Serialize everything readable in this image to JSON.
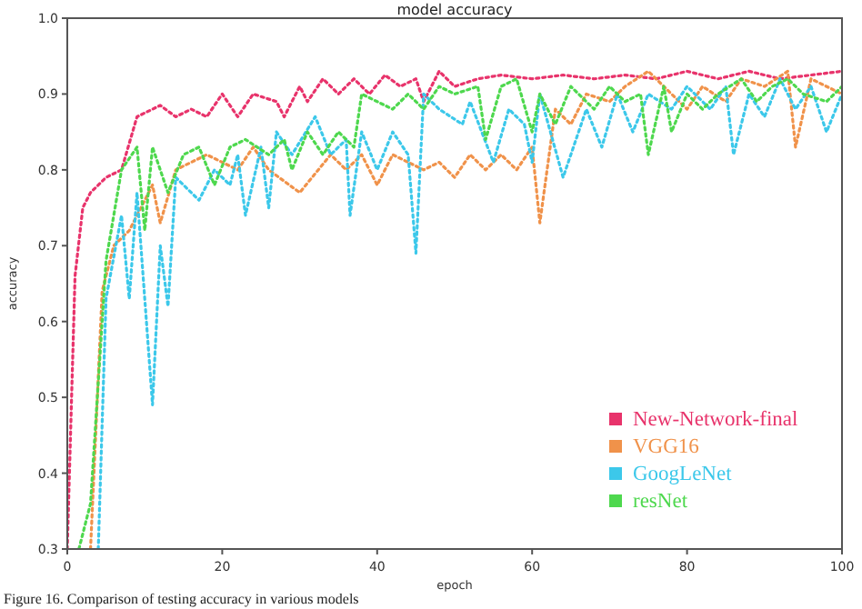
{
  "chart_data": {
    "type": "line",
    "title": "model accuracy",
    "xlabel": "epoch",
    "ylabel": "accuracy",
    "annotations": [
      "Figure 16. Comparison of testing accuracy in various models"
    ],
    "xlim": [
      0,
      100
    ],
    "xticks": [
      0,
      20,
      40,
      60,
      80,
      100
    ],
    "ylim": [
      0.3,
      1.0
    ],
    "yticks": [
      0.3,
      0.4,
      0.5,
      0.6,
      0.7,
      0.8,
      0.9,
      {
        "value": 1.0,
        "label": "1.0"
      }
    ],
    "grid": false,
    "legend": "bottom right",
    "line_style": "dotted",
    "series": [
      {
        "name": "New-Network-final",
        "color": "#e8336b",
        "x": [
          0,
          1,
          2,
          3,
          5,
          7,
          9,
          12,
          14,
          16,
          18,
          20,
          22,
          24,
          27,
          28,
          30,
          31,
          33,
          35,
          37,
          39,
          41,
          43,
          45,
          46,
          48,
          50,
          53,
          56,
          60,
          64,
          68,
          72,
          76,
          80,
          84,
          88,
          92,
          96,
          100
        ],
        "values": [
          0.3,
          0.66,
          0.75,
          0.77,
          0.79,
          0.8,
          0.87,
          0.885,
          0.87,
          0.88,
          0.87,
          0.9,
          0.87,
          0.9,
          0.89,
          0.87,
          0.91,
          0.89,
          0.92,
          0.9,
          0.92,
          0.9,
          0.925,
          0.91,
          0.92,
          0.89,
          0.93,
          0.91,
          0.92,
          0.925,
          0.92,
          0.925,
          0.92,
          0.925,
          0.92,
          0.93,
          0.92,
          0.93,
          0.92,
          0.925,
          0.93
        ]
      },
      {
        "name": "VGG16",
        "color": "#f0924a",
        "x": [
          3,
          4.5,
          6,
          8,
          11,
          12,
          14,
          18,
          22,
          24,
          26,
          30,
          34,
          36,
          38,
          40,
          42,
          46,
          48,
          50,
          52,
          54,
          56,
          58,
          60,
          61,
          63,
          65,
          67,
          70,
          72,
          75,
          78,
          80,
          82,
          85,
          87,
          90,
          93,
          94,
          96,
          100
        ],
        "values": [
          0.3,
          0.64,
          0.7,
          0.72,
          0.78,
          0.73,
          0.8,
          0.82,
          0.8,
          0.83,
          0.8,
          0.77,
          0.82,
          0.8,
          0.82,
          0.78,
          0.82,
          0.8,
          0.81,
          0.79,
          0.82,
          0.8,
          0.82,
          0.8,
          0.83,
          0.73,
          0.88,
          0.86,
          0.9,
          0.89,
          0.91,
          0.93,
          0.9,
          0.88,
          0.91,
          0.89,
          0.92,
          0.91,
          0.93,
          0.83,
          0.92,
          0.9
        ]
      },
      {
        "name": "GoogLeNet",
        "color": "#3cc8ea",
        "x": [
          4,
          5,
          7,
          8,
          9,
          11,
          12,
          13,
          14,
          17,
          19,
          21,
          22,
          23,
          25,
          26,
          27,
          29,
          32,
          34,
          36,
          36.5,
          38,
          40,
          42,
          44,
          45,
          46,
          48,
          51,
          52,
          55,
          57,
          59,
          60,
          61,
          64,
          67,
          69,
          71,
          73,
          75,
          78,
          80,
          83,
          85,
          86,
          88,
          90,
          92,
          94,
          96,
          98,
          100
        ],
        "values": [
          0.3,
          0.63,
          0.74,
          0.63,
          0.77,
          0.49,
          0.7,
          0.62,
          0.79,
          0.76,
          0.8,
          0.78,
          0.82,
          0.74,
          0.83,
          0.75,
          0.85,
          0.82,
          0.87,
          0.82,
          0.84,
          0.74,
          0.85,
          0.8,
          0.85,
          0.82,
          0.69,
          0.9,
          0.88,
          0.86,
          0.89,
          0.81,
          0.88,
          0.86,
          0.81,
          0.9,
          0.79,
          0.88,
          0.83,
          0.9,
          0.85,
          0.9,
          0.88,
          0.91,
          0.88,
          0.91,
          0.82,
          0.9,
          0.87,
          0.92,
          0.88,
          0.91,
          0.85,
          0.9
        ]
      },
      {
        "name": "resNet",
        "color": "#4ed84e",
        "x": [
          1.5,
          3,
          5,
          7,
          9,
          10,
          11,
          13,
          15,
          17,
          19,
          21,
          23,
          26,
          28,
          29,
          31,
          33,
          35,
          37,
          38,
          40,
          42,
          44,
          46,
          48,
          50,
          53,
          54,
          56,
          58,
          60,
          61,
          63,
          65,
          68,
          70,
          72,
          74,
          75,
          77,
          78,
          80,
          82,
          84,
          87,
          89,
          91,
          93,
          95,
          98,
          100
        ],
        "values": [
          0.3,
          0.36,
          0.68,
          0.8,
          0.83,
          0.72,
          0.83,
          0.77,
          0.82,
          0.83,
          0.78,
          0.83,
          0.84,
          0.82,
          0.84,
          0.8,
          0.85,
          0.82,
          0.85,
          0.83,
          0.9,
          0.89,
          0.88,
          0.9,
          0.88,
          0.91,
          0.9,
          0.91,
          0.84,
          0.91,
          0.92,
          0.85,
          0.9,
          0.86,
          0.91,
          0.88,
          0.91,
          0.89,
          0.9,
          0.82,
          0.91,
          0.85,
          0.9,
          0.88,
          0.9,
          0.92,
          0.89,
          0.91,
          0.92,
          0.9,
          0.89,
          0.91
        ]
      }
    ]
  }
}
